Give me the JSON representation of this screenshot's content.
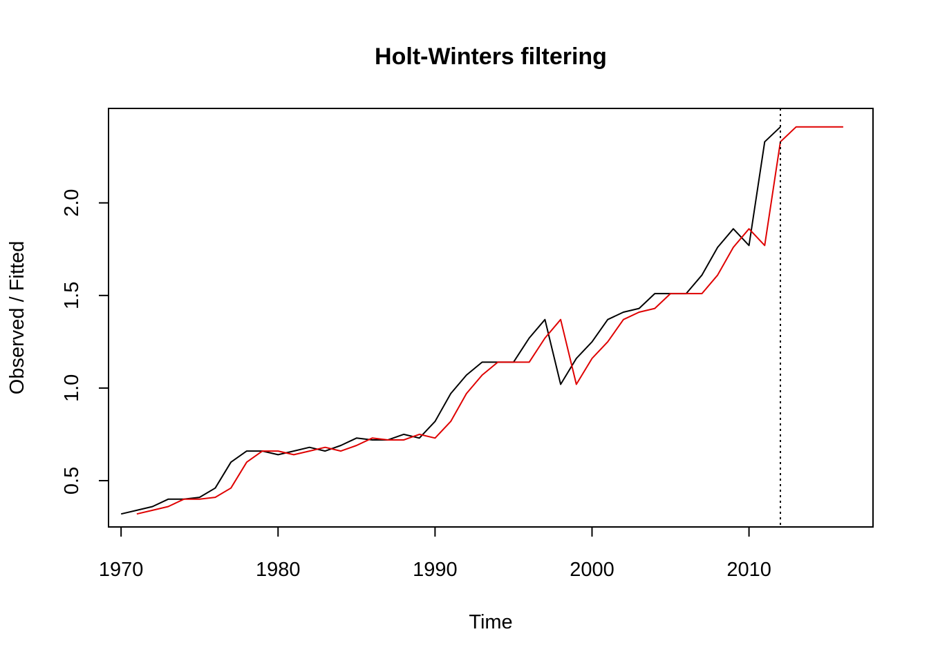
{
  "chart_data": {
    "type": "line",
    "title": "Holt-Winters filtering",
    "xlabel": "Time",
    "ylabel": "Observed / Fitted",
    "xlim": [
      1969.2,
      2017.9
    ],
    "ylim": [
      0.25,
      2.51
    ],
    "xticks": [
      1970,
      1980,
      1990,
      2000,
      2010
    ],
    "yticks": [
      0.5,
      1.0,
      1.5,
      2.0
    ],
    "xtick_labels": [
      "1970",
      "1980",
      "1990",
      "2000",
      "2010"
    ],
    "ytick_labels": [
      "0.5",
      "1.0",
      "1.5",
      "2.0"
    ],
    "grid": false,
    "legend": "none",
    "forecast_start": 2012,
    "series": [
      {
        "color": "#000000",
        "role": "observed",
        "x": [
          1970,
          1971,
          1972,
          1973,
          1974,
          1975,
          1976,
          1977,
          1978,
          1979,
          1980,
          1981,
          1982,
          1983,
          1984,
          1985,
          1986,
          1987,
          1988,
          1989,
          1990,
          1991,
          1992,
          1993,
          1994,
          1995,
          1996,
          1997,
          1998,
          1999,
          2000,
          2001,
          2002,
          2003,
          2004,
          2005,
          2006,
          2007,
          2008,
          2009,
          2010,
          2011,
          2012
        ],
        "y": [
          0.32,
          0.34,
          0.36,
          0.4,
          0.4,
          0.41,
          0.46,
          0.6,
          0.66,
          0.66,
          0.64,
          0.66,
          0.68,
          0.66,
          0.69,
          0.73,
          0.72,
          0.72,
          0.75,
          0.73,
          0.82,
          0.97,
          1.07,
          1.14,
          1.14,
          1.14,
          1.27,
          1.37,
          1.02,
          1.16,
          1.25,
          1.37,
          1.41,
          1.43,
          1.51,
          1.51,
          1.51,
          1.61,
          1.76,
          1.86,
          1.77,
          2.33,
          2.41
        ]
      },
      {
        "color": "#df0000",
        "role": "fitted",
        "x": [
          1971,
          1972,
          1973,
          1974,
          1975,
          1976,
          1977,
          1978,
          1979,
          1980,
          1981,
          1982,
          1983,
          1984,
          1985,
          1986,
          1987,
          1988,
          1989,
          1990,
          1991,
          1992,
          1993,
          1994,
          1995,
          1996,
          1997,
          1998,
          1999,
          2000,
          2001,
          2002,
          2003,
          2004,
          2005,
          2006,
          2007,
          2008,
          2009,
          2010,
          2011,
          2012,
          2013,
          2014,
          2015,
          2016
        ],
        "y": [
          0.32,
          0.34,
          0.36,
          0.4,
          0.4,
          0.41,
          0.46,
          0.6,
          0.66,
          0.66,
          0.64,
          0.66,
          0.68,
          0.66,
          0.69,
          0.73,
          0.72,
          0.72,
          0.75,
          0.73,
          0.82,
          0.97,
          1.07,
          1.14,
          1.14,
          1.14,
          1.27,
          1.37,
          1.02,
          1.16,
          1.25,
          1.37,
          1.41,
          1.43,
          1.51,
          1.51,
          1.51,
          1.61,
          1.76,
          1.86,
          1.77,
          2.33,
          2.41,
          2.41,
          2.41,
          2.41
        ]
      }
    ]
  }
}
